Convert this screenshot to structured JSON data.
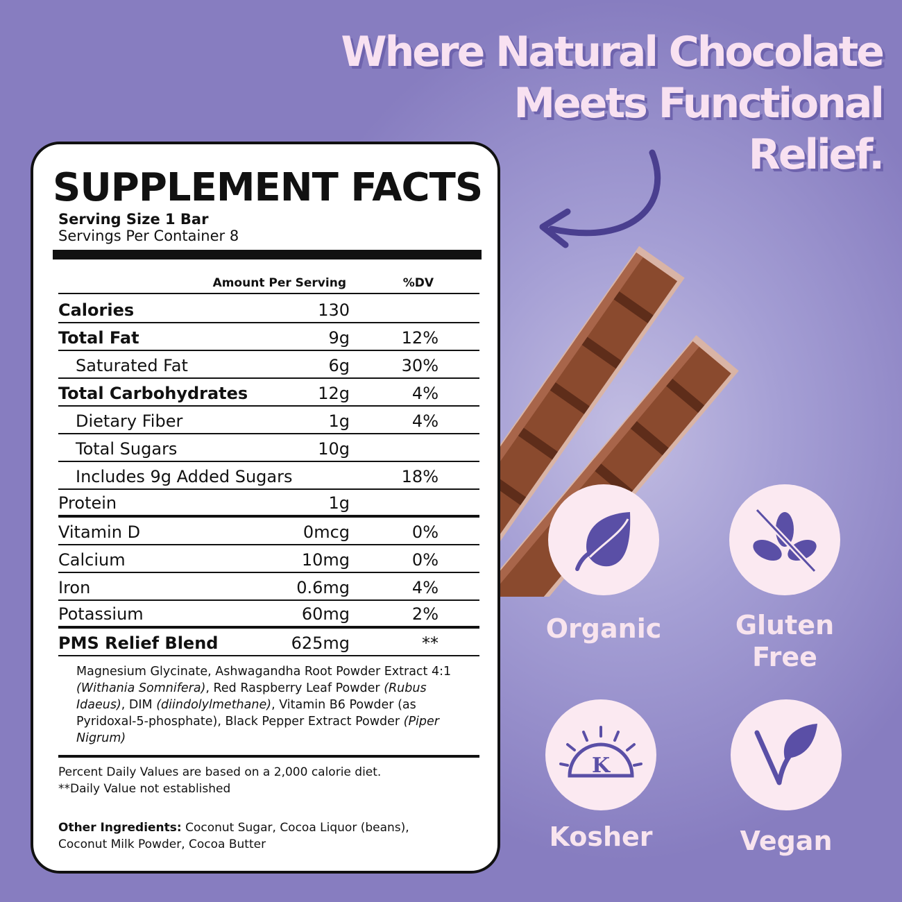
{
  "headline": {
    "line1": "Where Natural Chocolate",
    "line2": "Meets Functional",
    "line3": "Relief."
  },
  "facts": {
    "title": "SUPPLEMENT FACTS",
    "serving_size": "Serving Size 1 Bar",
    "servings_per_container": "Servings Per Container 8",
    "col_amount": "Amount Per Serving",
    "col_dv": "%DV",
    "rows": [
      {
        "name": "Calories",
        "amount": "130",
        "dv": "",
        "bold": true,
        "indent": false
      },
      {
        "name": "Total Fat",
        "amount": "9g",
        "dv": "12%",
        "bold": true,
        "indent": false
      },
      {
        "name": "Saturated Fat",
        "amount": "6g",
        "dv": "30%",
        "bold": false,
        "indent": true
      },
      {
        "name": "Total Carbohydrates",
        "amount": "12g",
        "dv": "4%",
        "bold": true,
        "indent": false
      },
      {
        "name": "Dietary Fiber",
        "amount": "1g",
        "dv": "4%",
        "bold": false,
        "indent": true
      },
      {
        "name": "Total Sugars",
        "amount": "10g",
        "dv": "",
        "bold": false,
        "indent": true
      },
      {
        "name": "Includes 9g Added Sugars",
        "amount": "",
        "dv": "18%",
        "bold": false,
        "indent": true
      },
      {
        "name": "Protein",
        "amount": "1g",
        "dv": "",
        "bold": false,
        "indent": false
      },
      {
        "name": "Vitamin D",
        "amount": "0mcg",
        "dv": "0%",
        "bold": false,
        "indent": false
      },
      {
        "name": "Calcium",
        "amount": "10mg",
        "dv": "0%",
        "bold": false,
        "indent": false
      },
      {
        "name": "Iron",
        "amount": "0.6mg",
        "dv": "4%",
        "bold": false,
        "indent": false
      },
      {
        "name": "Potassium",
        "amount": "60mg",
        "dv": "2%",
        "bold": false,
        "indent": false
      },
      {
        "name": "PMS Relief Blend",
        "amount": "625mg",
        "dv": "**",
        "bold": true,
        "indent": false
      }
    ],
    "blend_parts": [
      "Magnesium Glycinate, Ashwagandha Root Powder Extract 4:1 ",
      "(Withania Somnifera)",
      ", Red Raspberry Leaf Powder ",
      "(Rubus Idaeus)",
      ", DIM ",
      "(diindolylmethane)",
      ", Vitamin B6 Powder (as Pyridoxal-5-phosphate), Black Pepper Extract Powder ",
      "(Piper Nigrum)"
    ],
    "footnote1": "Percent Daily Values are based on a 2,000 calorie diet.",
    "footnote2": "**Daily Value not established",
    "other_label": "Other Ingredients:",
    "other_text": " Coconut Sugar, Cocoa Liquor (beans), Coconut Milk Powder, Cocoa Butter"
  },
  "badges": {
    "organic": {
      "label": "Organic",
      "icon": "leaf-icon"
    },
    "gluten_free": {
      "label1": "Gluten",
      "label2": "Free",
      "icon": "no-wheat-icon"
    },
    "kosher": {
      "label": "Kosher",
      "icon": "kosher-k-icon"
    },
    "vegan": {
      "label": "Vegan",
      "icon": "vegan-v-leaf-icon"
    }
  },
  "colors": {
    "background": "#8b80c4",
    "headline": "#f8e1f1",
    "badge": "#fbe9f1",
    "icon": "#5a4fa6",
    "arrow": "#4a3f8f",
    "chocolate": "#8a4a2e"
  }
}
